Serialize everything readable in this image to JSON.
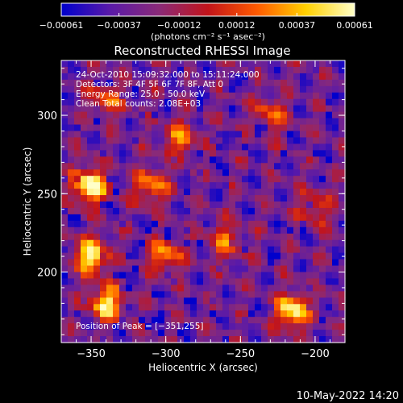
{
  "chart_data": {
    "type": "heatmap",
    "title": "Reconstructed RHESSI Image",
    "xlabel": "Heliocentric X (arcsec)",
    "ylabel": "Heliocentric Y (arcsec)",
    "xlim": [
      -370,
      -180
    ],
    "ylim": [
      155,
      335
    ],
    "x_ticks": [
      -350,
      -300,
      -250,
      -200
    ],
    "x_tick_labels": [
      "−350",
      "−300",
      "−250",
      "−200"
    ],
    "y_ticks": [
      200,
      250,
      300
    ],
    "y_tick_labels": [
      "200",
      "250",
      "300"
    ],
    "colorbar": {
      "ticks": [
        -0.00061,
        -0.00037,
        -0.00012,
        0.00012,
        0.00037,
        0.00061
      ],
      "tick_labels": [
        "−0.00061",
        "−0.00037",
        "−0.00012",
        "0.00012",
        "0.00037",
        "0.00061"
      ],
      "unit_label": "(photons cm⁻² s⁻¹ asec⁻²)",
      "vmin": -0.00061,
      "vmax": 0.00061,
      "colormap": [
        "#0000cc",
        "#5a1aa8",
        "#8a2a78",
        "#c2141a",
        "#ff5a00",
        "#ffd000",
        "#ffffc8"
      ]
    },
    "peak": [
      -351,
      255
    ],
    "annotations": [
      "24-Oct-2010 15:09:32.000 to 15:11:24.000",
      "Detectors: 3F 4F 5F 6F 7F 8F, Att 0",
      "Energy Range: 25.0 - 50.0 keV",
      "Clean     Total counts: 2.08E+03",
      "Position of Peak = [−351,255]"
    ],
    "bright_regions": [
      {
        "x": -351,
        "y": 255,
        "level": 1.0
      },
      {
        "x": -350,
        "y": 210,
        "level": 0.9
      },
      {
        "x": -340,
        "y": 180,
        "level": 0.85
      },
      {
        "x": -215,
        "y": 175,
        "level": 0.9
      },
      {
        "x": -310,
        "y": 255,
        "level": 0.6
      },
      {
        "x": -290,
        "y": 285,
        "level": 0.55
      },
      {
        "x": -230,
        "y": 300,
        "level": 0.5
      },
      {
        "x": -300,
        "y": 210,
        "level": 0.6
      },
      {
        "x": -260,
        "y": 220,
        "level": 0.5
      },
      {
        "x": -340,
        "y": 310,
        "level": 0.45
      },
      {
        "x": -200,
        "y": 240,
        "level": 0.45
      }
    ]
  },
  "footer": {
    "date": "10-May-2022 14:20"
  }
}
